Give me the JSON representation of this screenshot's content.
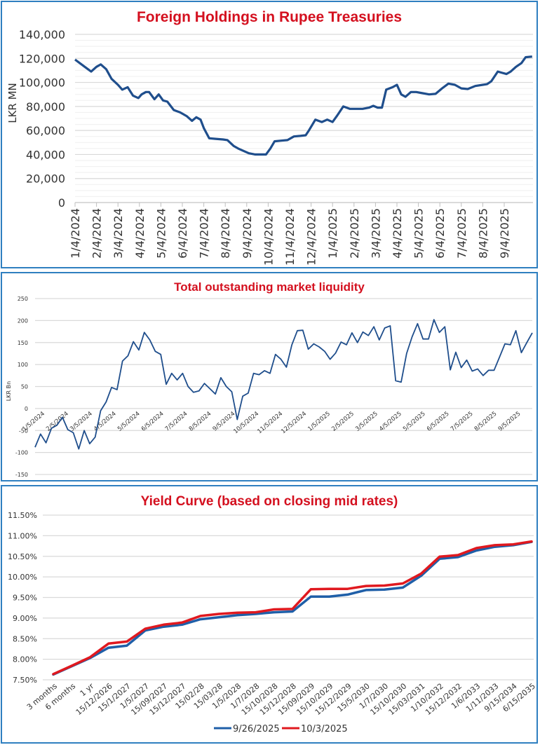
{
  "colors": {
    "title": "#d4101f",
    "frame": "#2f7fc0",
    "line_primary": "#1f4e8c",
    "line_red": "#e0191f",
    "line_blue": "#1f5fa8"
  },
  "chart_data": [
    {
      "id": "foreign-holdings",
      "type": "line",
      "title": "Foreign Holdings in Rupee Treasuries",
      "ylabel": "LKR MN",
      "xlabel": "",
      "ylim": [
        0,
        140000
      ],
      "yticks": [
        "0",
        "20,000",
        "40,000",
        "60,000",
        "80,000",
        "100,000",
        "120,000",
        "140,000"
      ],
      "ytick_values": [
        0,
        20000,
        40000,
        60000,
        80000,
        100000,
        120000,
        140000
      ],
      "xtick_labels": [
        "1/4/2024",
        "2/4/2024",
        "3/4/2024",
        "4/4/2024",
        "5/4/2024",
        "6/4/2024",
        "7/4/2024",
        "8/4/2024",
        "9/4/2024",
        "10/4/2024",
        "11/4/2024",
        "12/4/2024",
        "1/4/2025",
        "2/4/2025",
        "3/4/2025",
        "4/4/2025",
        "5/4/2025",
        "6/4/2025",
        "7/4/2025",
        "8/4/2025",
        "9/4/2025"
      ],
      "grid": true,
      "legend": "none",
      "series": [
        {
          "name": "Foreign Holdings",
          "x_months": [
            0,
            0.45,
            0.75,
            1.0,
            1.2,
            1.45,
            1.7,
            2.0,
            2.2,
            2.45,
            2.7,
            2.95,
            3.1,
            3.3,
            3.45,
            3.7,
            3.9,
            4.1,
            4.3,
            4.6,
            4.9,
            5.2,
            5.45,
            5.65,
            5.85,
            6.0,
            6.25,
            6.55,
            6.9,
            7.1,
            7.4,
            7.6,
            7.85,
            8.1,
            8.4,
            8.65,
            8.9,
            9.1,
            9.3,
            9.6,
            9.9,
            10.2,
            10.5,
            10.75,
            10.9,
            11.2,
            11.5,
            11.75,
            12.0,
            12.2,
            12.5,
            12.8,
            13.1,
            13.4,
            13.7,
            13.9,
            14.1,
            14.3,
            14.5,
            14.8,
            15.0,
            15.2,
            15.4,
            15.65,
            15.9,
            16.2,
            16.5,
            16.8,
            17.1,
            17.4,
            17.7,
            18.0,
            18.3,
            18.65,
            19.0,
            19.2,
            19.4,
            19.7,
            19.9,
            20.1,
            20.3,
            20.55,
            20.8,
            21.0,
            21.3
          ],
          "values": [
            119000,
            113000,
            109000,
            113000,
            115000,
            111000,
            103000,
            98000,
            94000,
            96000,
            89000,
            87000,
            90000,
            92000,
            92000,
            86000,
            90000,
            85000,
            84000,
            77000,
            75000,
            72000,
            68000,
            71000,
            69000,
            62000,
            53500,
            53000,
            52500,
            52000,
            47000,
            45000,
            43000,
            41000,
            40000,
            40000,
            40000,
            45000,
            51000,
            51500,
            52000,
            55000,
            55500,
            56000,
            60000,
            69000,
            67000,
            69000,
            67000,
            72000,
            80000,
            78000,
            78000,
            78000,
            79000,
            80500,
            79000,
            79000,
            94000,
            96000,
            98000,
            90000,
            88000,
            92000,
            92000,
            91000,
            90000,
            90500,
            95000,
            99000,
            98000,
            95000,
            94500,
            97000,
            98000,
            98500,
            101000,
            109000,
            108000,
            107000,
            109000,
            113000,
            116000,
            121000,
            121500
          ]
        }
      ]
    },
    {
      "id": "market-liquidity",
      "type": "line",
      "title": "Total outstanding market liquidity",
      "ylabel": "LKR Bn",
      "xlabel": "",
      "ylim": [
        -150,
        250
      ],
      "yticks": [
        "-150",
        "-100",
        "-50",
        "0",
        "50",
        "100",
        "150",
        "200",
        "250"
      ],
      "ytick_values": [
        -150,
        -100,
        -50,
        0,
        50,
        100,
        150,
        200,
        250
      ],
      "xtick_labels": [
        "1/5/2024",
        "2/5/2024",
        "3/5/2024",
        "4/5/2024",
        "5/5/2024",
        "6/5/2024",
        "7/5/2024",
        "8/5/2024",
        "9/5/2024",
        "10/5/2024",
        "11/5/2024",
        "12/5/2024",
        "1/5/2025",
        "2/5/2025",
        "3/5/2025",
        "4/5/2025",
        "5/5/2025",
        "6/5/2025",
        "7/5/2025",
        "8/5/2025",
        "9/5/2025"
      ],
      "grid": true,
      "legend": "none",
      "series": [
        {
          "name": "Market liquidity",
          "values": [
            -88,
            -58,
            -78,
            -45,
            -38,
            -20,
            -48,
            -55,
            -92,
            -50,
            -80,
            -65,
            -5,
            15,
            48,
            43,
            108,
            120,
            152,
            133,
            173,
            156,
            130,
            123,
            55,
            80,
            65,
            80,
            50,
            37,
            40,
            57,
            45,
            33,
            70,
            50,
            38,
            -25,
            28,
            35,
            80,
            77,
            86,
            80,
            123,
            112,
            94,
            145,
            177,
            178,
            135,
            147,
            140,
            130,
            112,
            126,
            151,
            145,
            172,
            150,
            174,
            166,
            186,
            156,
            183,
            188,
            63,
            60,
            125,
            163,
            193,
            158,
            158,
            202,
            173,
            186,
            88,
            128,
            93,
            110,
            85,
            90,
            75,
            87,
            87,
            117,
            147,
            145,
            177,
            127,
            150,
            172
          ]
        }
      ]
    },
    {
      "id": "yield-curve",
      "type": "line",
      "title": "Yield Curve (based on closing mid rates)",
      "ylabel": "",
      "xlabel": "",
      "ylim": [
        7.5,
        11.5
      ],
      "yticks": [
        "7.50%",
        "8.00%",
        "8.50%",
        "9.00%",
        "9.50%",
        "10.00%",
        "10.50%",
        "11.00%",
        "11.50%"
      ],
      "ytick_values": [
        7.5,
        8.0,
        8.5,
        9.0,
        9.5,
        10.0,
        10.5,
        11.0,
        11.5
      ],
      "categories": [
        "3 months",
        "6 months",
        "1 yr",
        "15/12/2026",
        "15/1/2027",
        "1/5/2027",
        "15/09/2027",
        "15/12/2027",
        "15/02/28",
        "15/03/28",
        "1/5/2028",
        "1/7/2028",
        "15/10/2028",
        "15/12/2028",
        "15/09/2029",
        "15/10/2029",
        "15/12/2029",
        "15/5/2030",
        "1/7/2030",
        "15/10/2030",
        "15/03/2031",
        "1/10/2032",
        "15/12/2032",
        "1/6/2033",
        "1/11/2033",
        "9/15/2034",
        "6/15/2035"
      ],
      "grid": true,
      "legend": "bottom-center",
      "series": [
        {
          "name": "9/26/2025",
          "color": "#1f5fa8",
          "values": [
            7.63,
            7.83,
            8.03,
            8.28,
            8.33,
            8.7,
            8.79,
            8.84,
            8.97,
            9.02,
            9.07,
            9.1,
            9.14,
            9.16,
            9.52,
            9.52,
            9.57,
            9.68,
            9.69,
            9.74,
            10.03,
            10.44,
            10.48,
            10.64,
            10.73,
            10.77,
            10.85
          ]
        },
        {
          "name": "10/3/2025",
          "color": "#e0191f",
          "values": [
            7.64,
            7.84,
            8.05,
            8.38,
            8.43,
            8.74,
            8.84,
            8.89,
            9.05,
            9.1,
            9.13,
            9.14,
            9.21,
            9.22,
            9.7,
            9.71,
            9.71,
            9.78,
            9.79,
            9.84,
            10.08,
            10.49,
            10.53,
            10.7,
            10.77,
            10.79,
            10.86
          ]
        }
      ]
    }
  ]
}
